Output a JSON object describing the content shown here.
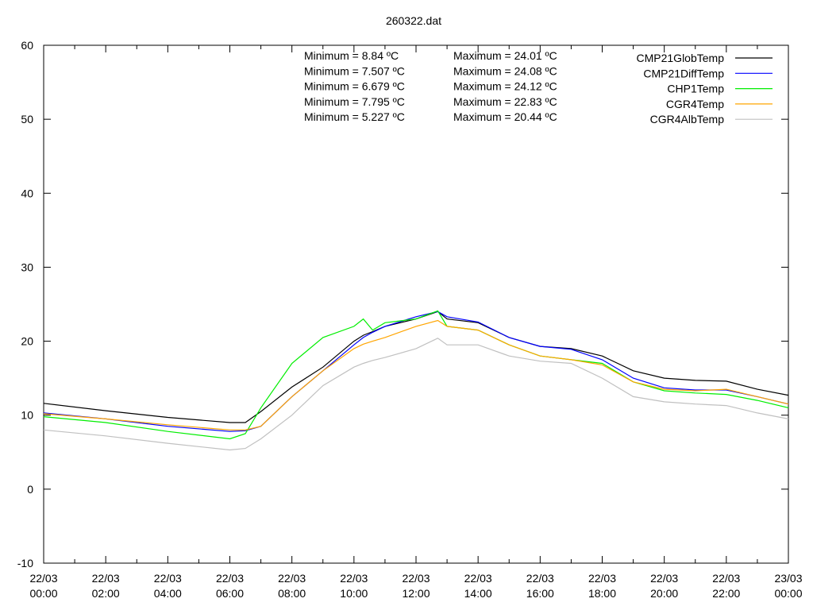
{
  "chart_data": {
    "type": "line",
    "title": "260322.dat",
    "xlabel": "",
    "ylabel": "",
    "xlim_hours": [
      0,
      24
    ],
    "ylim": [
      -10,
      60
    ],
    "y_ticks": [
      -10,
      0,
      10,
      20,
      30,
      40,
      50,
      60
    ],
    "x_ticks": [
      {
        "hour": 0,
        "date": "22/03",
        "time": "00:00"
      },
      {
        "hour": 2,
        "date": "22/03",
        "time": "02:00"
      },
      {
        "hour": 4,
        "date": "22/03",
        "time": "04:00"
      },
      {
        "hour": 6,
        "date": "22/03",
        "time": "06:00"
      },
      {
        "hour": 8,
        "date": "22/03",
        "time": "08:00"
      },
      {
        "hour": 10,
        "date": "22/03",
        "time": "10:00"
      },
      {
        "hour": 12,
        "date": "22/03",
        "time": "12:00"
      },
      {
        "hour": 14,
        "date": "22/03",
        "time": "14:00"
      },
      {
        "hour": 16,
        "date": "22/03",
        "time": "16:00"
      },
      {
        "hour": 18,
        "date": "22/03",
        "time": "18:00"
      },
      {
        "hour": 20,
        "date": "22/03",
        "time": "20:00"
      },
      {
        "hour": 22,
        "date": "22/03",
        "time": "22:00"
      },
      {
        "hour": 24,
        "date": "23/03",
        "time": "00:00"
      }
    ],
    "grid": false,
    "legend_position": "top-right",
    "stats": [
      {
        "min": "Minimum = 8.84 ºC",
        "max": "Maximum = 24.01 ºC"
      },
      {
        "min": "Minimum = 7.507 ºC",
        "max": "Maximum = 24.08 ºC"
      },
      {
        "min": "Minimum = 6.679 ºC",
        "max": "Maximum = 24.12 ºC"
      },
      {
        "min": "Minimum = 7.795 ºC",
        "max": "Maximum = 22.83 ºC"
      },
      {
        "min": "Minimum = 5.227 ºC",
        "max": "Maximum = 20.44 ºC"
      }
    ],
    "x_hours": [
      0,
      2,
      4,
      6,
      6.5,
      7,
      8,
      9,
      10,
      10.3,
      10.6,
      11,
      12,
      12.7,
      13,
      14,
      15,
      16,
      17,
      18,
      19,
      20,
      21,
      22,
      23,
      24
    ],
    "series": [
      {
        "name": "CMP21GlobTemp",
        "color": "#000000",
        "values": [
          11.6,
          10.6,
          9.7,
          9.0,
          9.0,
          10.5,
          13.8,
          16.5,
          20.0,
          20.8,
          21.3,
          22.0,
          23.0,
          24.0,
          23.0,
          22.5,
          20.5,
          19.3,
          19.0,
          18.0,
          16.0,
          15.0,
          14.7,
          14.6,
          13.5,
          12.7
        ]
      },
      {
        "name": "CMP21DiffTemp",
        "color": "#0000ff",
        "values": [
          10.3,
          9.5,
          8.5,
          7.8,
          7.9,
          8.5,
          12.5,
          16.0,
          19.5,
          20.5,
          21.2,
          22.0,
          23.3,
          24.0,
          23.3,
          22.6,
          20.5,
          19.3,
          18.9,
          17.5,
          15.0,
          13.7,
          13.4,
          13.4,
          12.5,
          11.5
        ]
      },
      {
        "name": "CHP1Temp",
        "color": "#00ee00",
        "values": [
          9.8,
          9.0,
          7.8,
          6.8,
          7.5,
          11.0,
          17.0,
          20.5,
          22.0,
          23.0,
          21.5,
          22.5,
          23.0,
          24.1,
          22.0,
          21.5,
          19.5,
          18.0,
          17.5,
          17.0,
          14.5,
          13.3,
          13.0,
          12.8,
          12.0,
          11.0
        ]
      },
      {
        "name": "CGR4Temp",
        "color": "#ffa500",
        "values": [
          10.2,
          9.5,
          8.7,
          8.0,
          8.0,
          8.5,
          12.5,
          16.0,
          19.0,
          19.6,
          20.0,
          20.5,
          22.0,
          22.8,
          22.0,
          21.5,
          19.5,
          18.0,
          17.5,
          16.8,
          14.5,
          13.5,
          13.3,
          13.5,
          12.5,
          11.5
        ]
      },
      {
        "name": "CGR4AlbTemp",
        "color": "#c0c0c0",
        "values": [
          8.0,
          7.2,
          6.2,
          5.3,
          5.5,
          6.8,
          10.0,
          14.0,
          16.5,
          17.0,
          17.4,
          17.8,
          19.0,
          20.4,
          19.5,
          19.5,
          18.0,
          17.3,
          17.0,
          15.0,
          12.5,
          11.8,
          11.5,
          11.3,
          10.3,
          9.5
        ]
      }
    ]
  }
}
